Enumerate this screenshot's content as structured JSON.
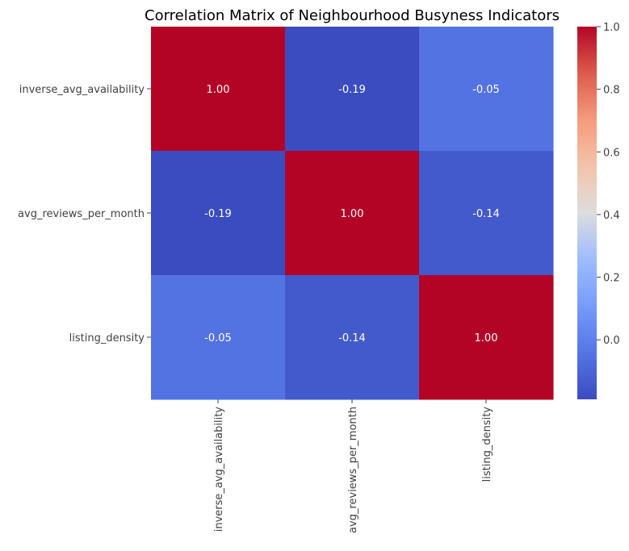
{
  "chart_data": {
    "type": "heatmap",
    "title": "Correlation Matrix of Neighbourhood Busyness Indicators",
    "row_labels": [
      "inverse_avg_availability",
      "avg_reviews_per_month",
      "listing_density"
    ],
    "col_labels": [
      "inverse_avg_availability",
      "avg_reviews_per_month",
      "listing_density"
    ],
    "values": [
      [
        1.0,
        -0.19,
        -0.05
      ],
      [
        -0.19,
        1.0,
        -0.14
      ],
      [
        -0.05,
        -0.14,
        1.0
      ]
    ],
    "cell_labels": [
      [
        "1.00",
        "-0.19",
        "-0.05"
      ],
      [
        "-0.19",
        "1.00",
        "-0.14"
      ],
      [
        "-0.05",
        "-0.14",
        "1.00"
      ]
    ],
    "colormap": "coolwarm",
    "color_range": [
      -0.19,
      1.0
    ],
    "colorbar_ticks": [
      0.0,
      0.2,
      0.4,
      0.6,
      0.8,
      1.0
    ],
    "colorbar_tick_labels": [
      "0.0",
      "0.2",
      "0.4",
      "0.6",
      "0.8",
      "1.0"
    ],
    "colorbar_placement": "right",
    "grid": false
  }
}
